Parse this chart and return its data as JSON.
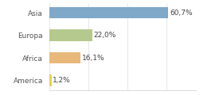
{
  "categories": [
    "Asia",
    "Europa",
    "Africa",
    "America"
  ],
  "values": [
    60.7,
    22.0,
    16.1,
    1.2
  ],
  "labels": [
    "60,7%",
    "22,0%",
    "16,1%",
    "1,2%"
  ],
  "bar_colors": [
    "#7fa8c9",
    "#b5c98e",
    "#e8b87a",
    "#e8d060"
  ],
  "background_color": "#ffffff",
  "xlim": [
    0,
    75
  ],
  "bar_height": 0.52,
  "label_fontsize": 6.5,
  "tick_fontsize": 6.5,
  "grid_ticks": [
    0,
    20,
    40,
    60
  ]
}
